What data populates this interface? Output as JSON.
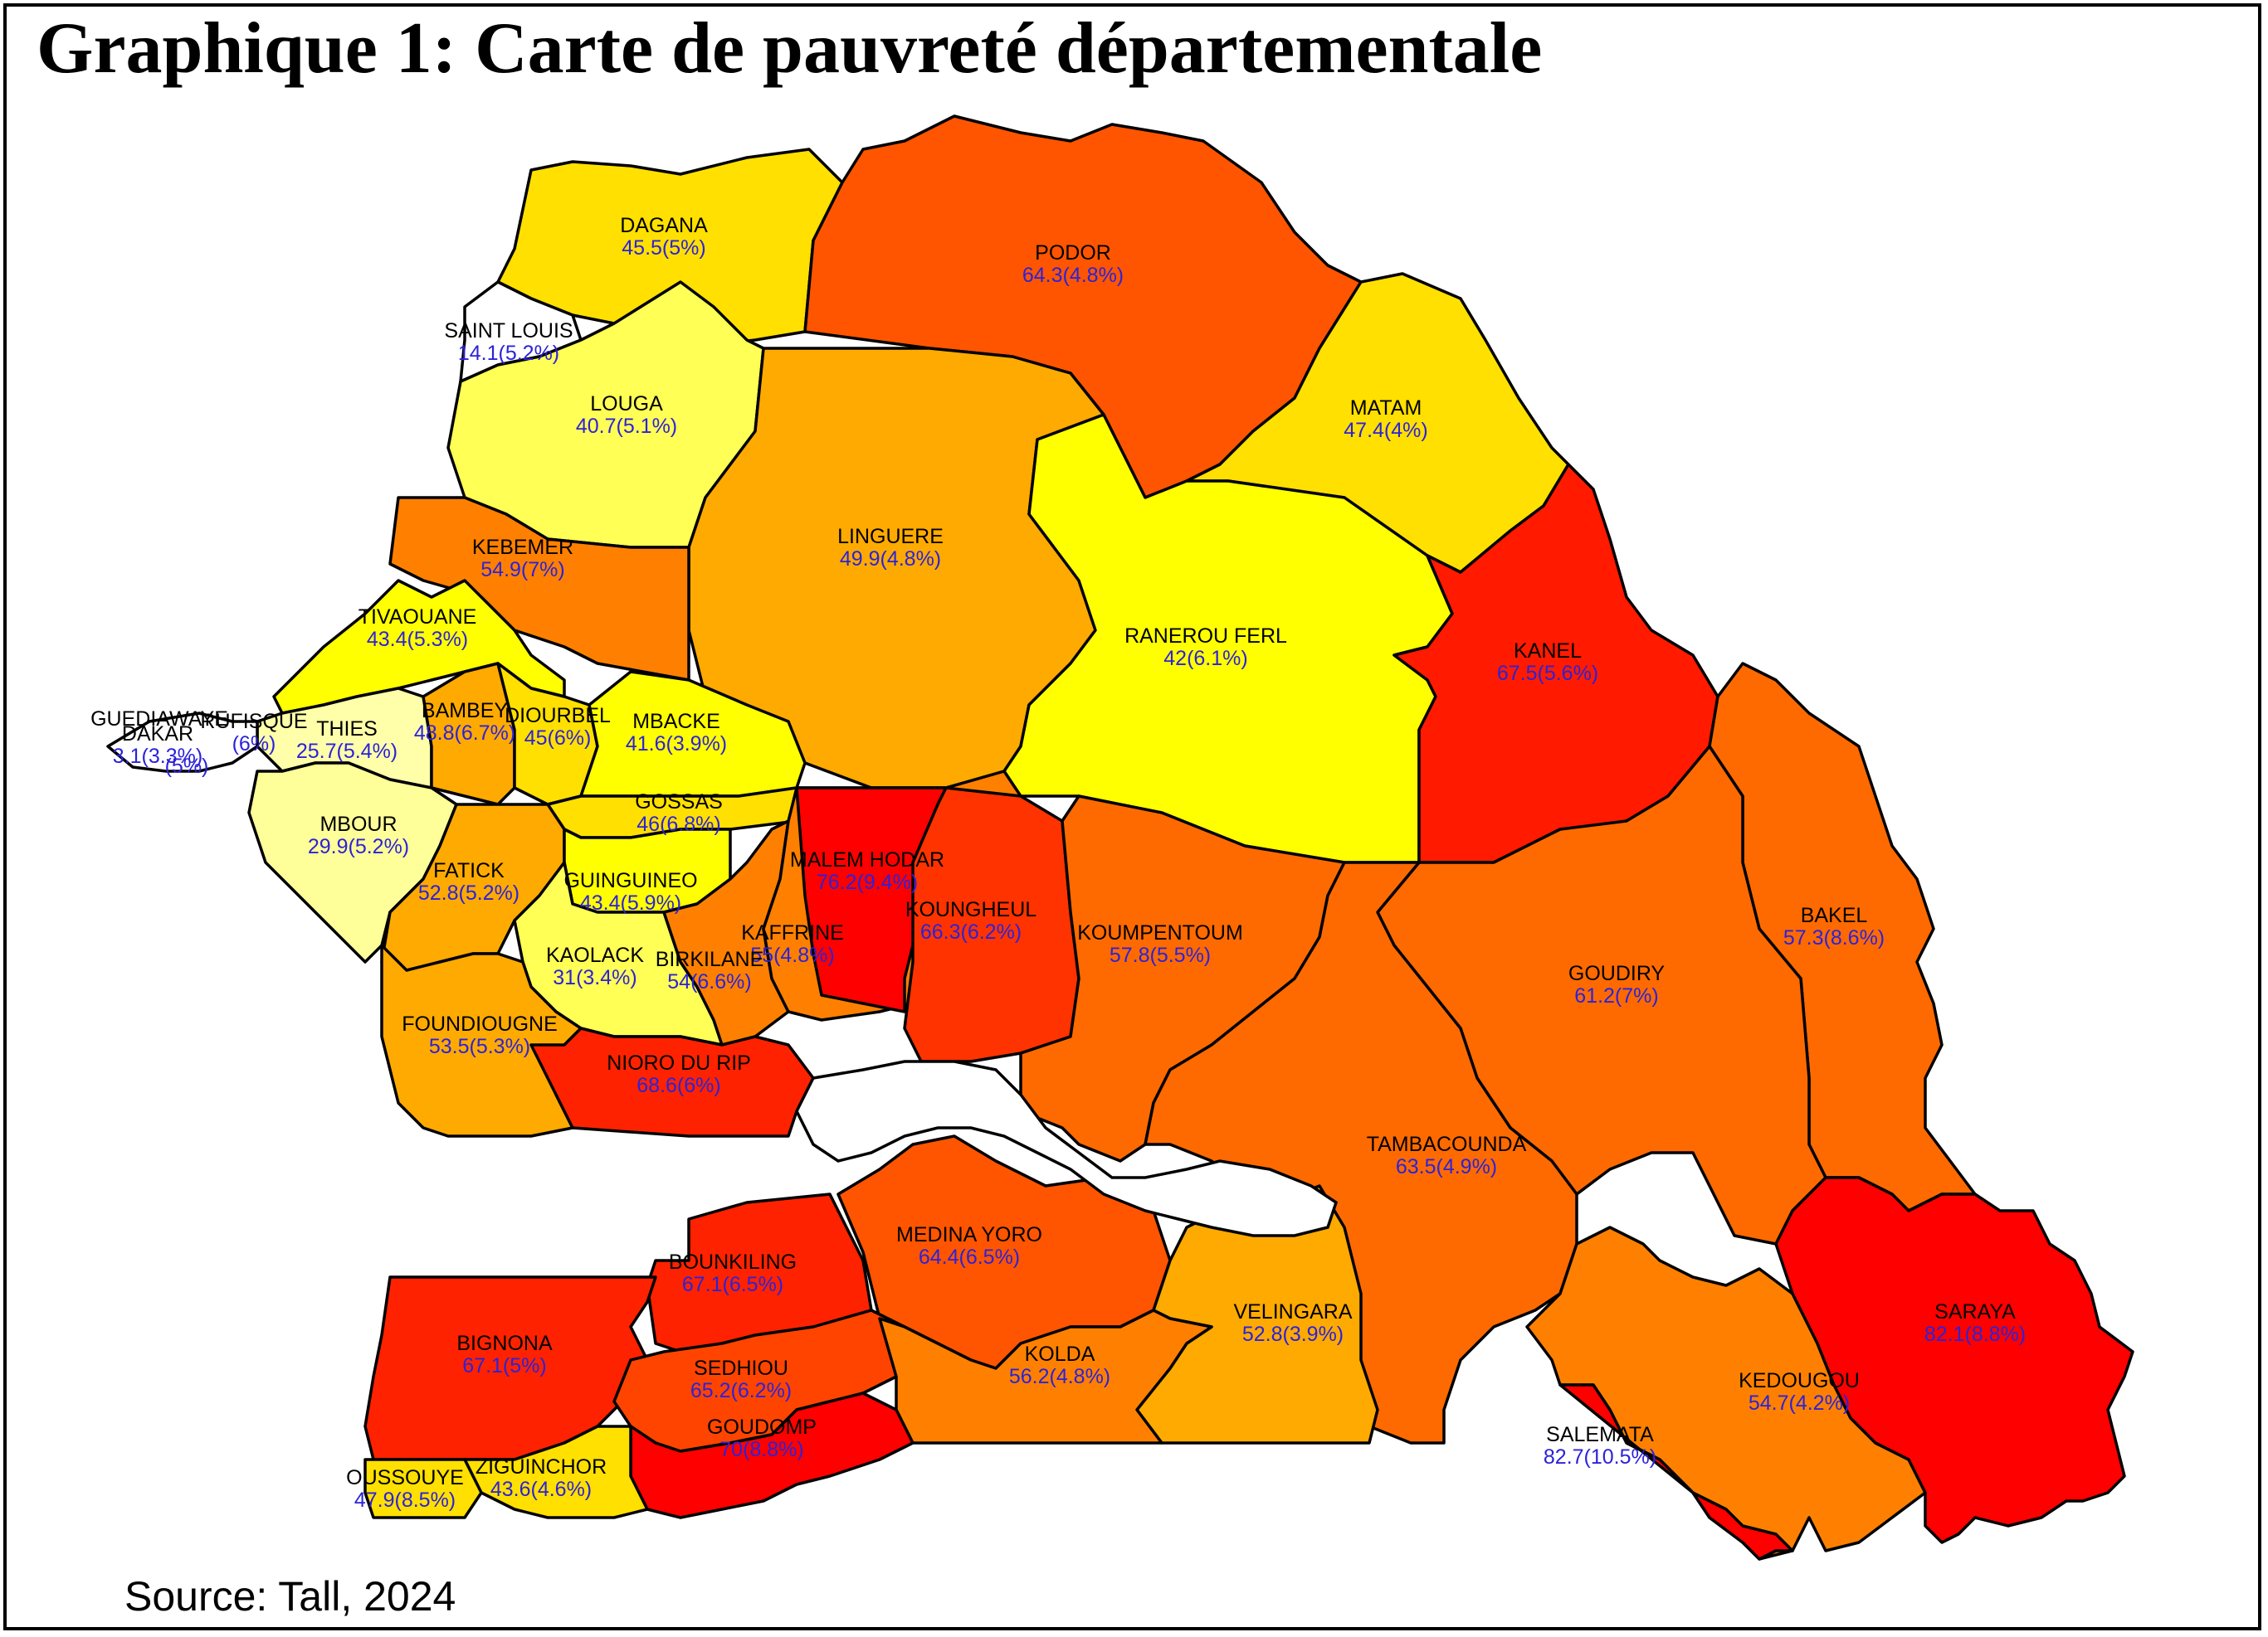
{
  "title": "Graphique 1: Carte de pauvreté départementale",
  "source": "Source: Tall, 2024",
  "departments": [
    {
      "key": "dagana",
      "name": "DAGANA",
      "value": "45.5(5%)",
      "color": "#FFE000"
    },
    {
      "key": "podor",
      "name": "PODOR",
      "value": "64.3(4.8%)",
      "color": "#FF5500"
    },
    {
      "key": "saint-louis",
      "name": "SAINT LOUIS",
      "value": "14.1(5.2%)",
      "color": "#FFFFFF"
    },
    {
      "key": "louga",
      "name": "LOUGA",
      "value": "40.7(5.1%)",
      "color": "#FFFF55"
    },
    {
      "key": "linguere",
      "name": "LINGUERE",
      "value": "49.9(4.8%)",
      "color": "#FFAA00"
    },
    {
      "key": "matam",
      "name": "MATAM",
      "value": "47.4(4%)",
      "color": "#FFE000"
    },
    {
      "key": "kebemer",
      "name": "KEBEMER",
      "value": "54.9(7%)",
      "color": "#FF8000"
    },
    {
      "key": "ranerou-ferl",
      "name": "RANEROU FERL",
      "value": "42(6.1%)",
      "color": "#FFFF00"
    },
    {
      "key": "kanel",
      "name": "KANEL",
      "value": "67.5(5.6%)",
      "color": "#FF1A00"
    },
    {
      "key": "tivaouane",
      "name": "TIVAOUANE",
      "value": "43.4(5.3%)",
      "color": "#FFFF00"
    },
    {
      "key": "guediawaye",
      "name": "GUEDIAWAYE",
      "value": "",
      "color": "#FFFFFF"
    },
    {
      "key": "dakar",
      "name": "DAKAR",
      "value": "3.1(3.3%)",
      "color": "#FFFFFF"
    },
    {
      "key": "rufisque",
      "name": "RUFISQUE",
      "value": "(6%)",
      "color": "#FFFFFF"
    },
    {
      "key": "pikine",
      "name": "",
      "value": "(5%)",
      "color": "#FFFFFF"
    },
    {
      "key": "thies",
      "name": "THIES",
      "value": "25.7(5.4%)",
      "color": "#FFFFAA"
    },
    {
      "key": "bambey",
      "name": "BAMBEY",
      "value": "48.8(6.7%)",
      "color": "#FFAA00"
    },
    {
      "key": "diourbel",
      "name": "DIOURBEL",
      "value": "45(6%)",
      "color": "#FFE000"
    },
    {
      "key": "mbacke",
      "name": "MBACKE",
      "value": "41.6(3.9%)",
      "color": "#FFFF00"
    },
    {
      "key": "gossas",
      "name": "GOSSAS",
      "value": "46(6.8%)",
      "color": "#FFE000"
    },
    {
      "key": "mbour",
      "name": "MBOUR",
      "value": "29.9(5.2%)",
      "color": "#FFFF99"
    },
    {
      "key": "fatick",
      "name": "FATICK",
      "value": "52.8(5.2%)",
      "color": "#FFAA00"
    },
    {
      "key": "guinguineo",
      "name": "GUINGUINEO",
      "value": "43.4(5.9%)",
      "color": "#FFFF00"
    },
    {
      "key": "malem-hodar",
      "name": "MALEM HODAR",
      "value": "76.2(9.4%)",
      "color": "#FF0000"
    },
    {
      "key": "koungheul",
      "name": "KOUNGHEUL",
      "value": "66.3(6.2%)",
      "color": "#FF3300"
    },
    {
      "key": "koumpentoum",
      "name": "KOUMPENTOUM",
      "value": "57.8(5.5%)",
      "color": "#FF6A00"
    },
    {
      "key": "kaffrine",
      "name": "KAFFRINE",
      "value": "55(4.8%)",
      "color": "#FF8000"
    },
    {
      "key": "birkilane",
      "name": "BIRKILANE",
      "value": "54(6.6%)",
      "color": "#FF8000"
    },
    {
      "key": "kaolack",
      "name": "KAOLACK",
      "value": "31(3.4%)",
      "color": "#FFFF55"
    },
    {
      "key": "bakel",
      "name": "BAKEL",
      "value": "57.3(8.6%)",
      "color": "#FF6A00"
    },
    {
      "key": "goudiry",
      "name": "GOUDIRY",
      "value": "61.2(7%)",
      "color": "#FF6A00"
    },
    {
      "key": "foundiougne",
      "name": "FOUNDIOUGNE",
      "value": "53.5(5.3%)",
      "color": "#FFAA00"
    },
    {
      "key": "nioro-du-rip",
      "name": "NIORO DU RIP",
      "value": "68.6(6%)",
      "color": "#FF2200"
    },
    {
      "key": "tambacounda",
      "name": "TAMBACOUNDA",
      "value": "63.5(4.9%)",
      "color": "#FF6A00"
    },
    {
      "key": "bounkiling",
      "name": "BOUNKILING",
      "value": "67.1(6.5%)",
      "color": "#FF2200"
    },
    {
      "key": "medina-yoro",
      "name": "MEDINA YORO",
      "value": "64.4(6.5%)",
      "color": "#FF5500"
    },
    {
      "key": "velingara",
      "name": "VELINGARA",
      "value": "52.8(3.9%)",
      "color": "#FFAA00"
    },
    {
      "key": "bignona",
      "name": "BIGNONA",
      "value": "67.1(5%)",
      "color": "#FF2200"
    },
    {
      "key": "sedhiou",
      "name": "SEDHIOU",
      "value": "65.2(6.2%)",
      "color": "#FF4400"
    },
    {
      "key": "kolda",
      "name": "KOLDA",
      "value": "56.2(4.8%)",
      "color": "#FF8000"
    },
    {
      "key": "saraya",
      "name": "SARAYA",
      "value": "82.1(8.8%)",
      "color": "#FF0000"
    },
    {
      "key": "kedougou",
      "name": "KEDOUGOU",
      "value": "54.7(4.2%)",
      "color": "#FF8000"
    },
    {
      "key": "goudomp",
      "name": "GOUDOMP",
      "value": "70(8.8%)",
      "color": "#FF0000"
    },
    {
      "key": "salemata",
      "name": "SALEMATA",
      "value": "82.7(10.5%)",
      "color": "#FF0000"
    },
    {
      "key": "oussouye",
      "name": "OUSSOUYE",
      "value": "47.9(8.5%)",
      "color": "#FFE000"
    },
    {
      "key": "ziguinchor",
      "name": "ZIGUINCHOR",
      "value": "43.6(4.6%)",
      "color": "#FFE000"
    }
  ]
}
